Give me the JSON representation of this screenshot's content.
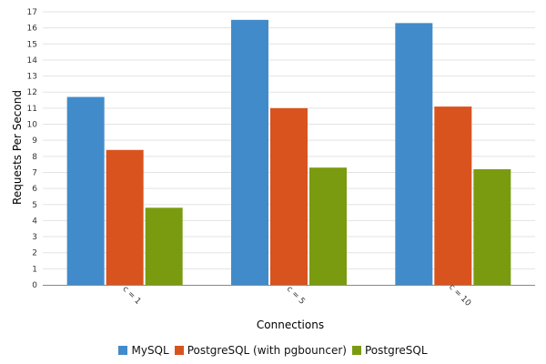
{
  "chart_data": {
    "type": "bar",
    "title": "",
    "xlabel": "Connections",
    "ylabel": "Requests Per Second",
    "categories": [
      "c = 1",
      "c = 5",
      "c = 10"
    ],
    "ylim": [
      0,
      17
    ],
    "yticks": [
      0,
      1,
      2,
      3,
      4,
      5,
      6,
      7,
      8,
      9,
      10,
      11,
      12,
      13,
      14,
      15,
      16,
      17
    ],
    "grid": true,
    "legend_position": "bottom-center",
    "series": [
      {
        "name": "MySQL",
        "color": "#428bca",
        "values": [
          11.7,
          16.5,
          16.3
        ]
      },
      {
        "name": "PostgreSQL (with pgbouncer)",
        "color": "#d9531e",
        "values": [
          8.4,
          11.0,
          11.1
        ]
      },
      {
        "name": "PostgreSQL",
        "color": "#7a9b10",
        "values": [
          4.8,
          7.3,
          7.2
        ]
      }
    ]
  }
}
